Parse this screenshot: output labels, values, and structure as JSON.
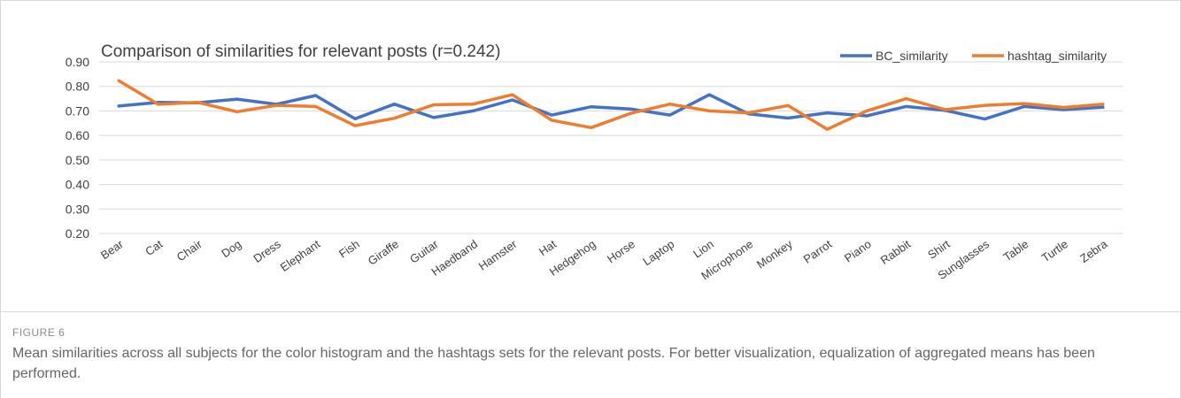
{
  "chart_data": {
    "type": "line",
    "title": "Comparison of similarities for relevant posts (r=0.242)",
    "categories": [
      "Bear",
      "Cat",
      "Chair",
      "Dog",
      "Dress",
      "Elephant",
      "Fish",
      "Giraffe",
      "Guitar",
      "Haedband",
      "Hamster",
      "Hat",
      "Hedgehog",
      "Horse",
      "Laptop",
      "Lion",
      "Microphone",
      "Monkey",
      "Parrot",
      "Piano",
      "Rabbit",
      "Shirt",
      "Sunglasses",
      "Table",
      "Turtle",
      "Zebra"
    ],
    "series": [
      {
        "name": "BC_similarity",
        "color": "#4472c4",
        "values": [
          0.72,
          0.735,
          0.733,
          0.748,
          0.727,
          0.763,
          0.668,
          0.728,
          0.673,
          0.7,
          0.745,
          0.683,
          0.717,
          0.708,
          0.683,
          0.766,
          0.688,
          0.671,
          0.692,
          0.68,
          0.718,
          0.702,
          0.667,
          0.718,
          0.705,
          0.715
        ]
      },
      {
        "name": "hashtag_similarity",
        "color": "#ed7d31",
        "values": [
          0.823,
          0.727,
          0.735,
          0.697,
          0.723,
          0.718,
          0.64,
          0.67,
          0.725,
          0.728,
          0.766,
          0.662,
          0.632,
          0.69,
          0.728,
          0.7,
          0.692,
          0.722,
          0.625,
          0.7,
          0.75,
          0.705,
          0.723,
          0.73,
          0.714,
          0.727
        ]
      }
    ],
    "yticks": [
      "0.20",
      "0.30",
      "0.40",
      "0.50",
      "0.60",
      "0.70",
      "0.80",
      "0.90"
    ],
    "ylim": [
      0.2,
      0.9
    ],
    "grid": true,
    "legend": "top-right"
  },
  "figure": {
    "label": "FIGURE 6",
    "caption": "Mean similarities across all subjects for the color histogram and the hashtags sets for the relevant posts. For better visualization, equalization of aggregated means has been performed."
  }
}
